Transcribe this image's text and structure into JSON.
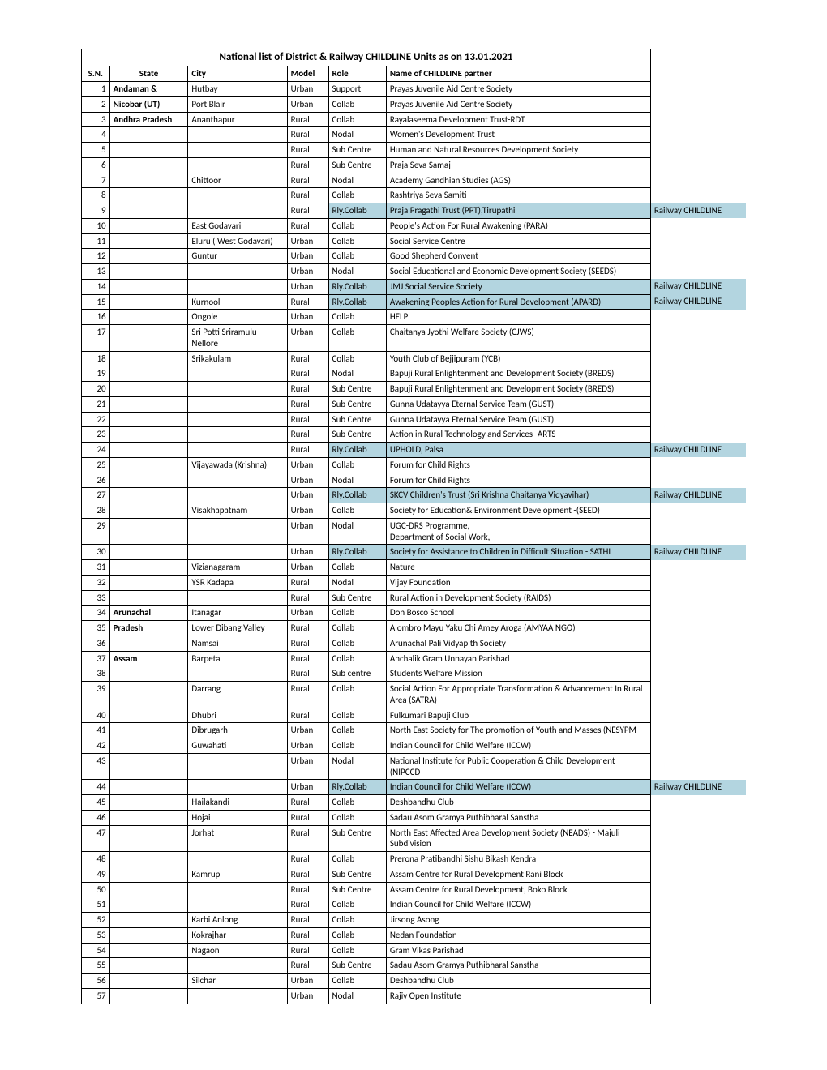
{
  "title": "National list of District & Railway CHILDLINE Units as on 13.01.2021",
  "headers": {
    "sn": "S.N.",
    "state": "State",
    "city": "City",
    "model": "Model",
    "role": "Role",
    "partner": "Name of CHILDLINE partner"
  },
  "tag_color": "#b3d5e0",
  "rows": [
    {
      "sn": 1,
      "state": "Andaman &",
      "city": "Hutbay",
      "model": "Urban",
      "role": "Support",
      "partner": "Prayas Juvenile Aid Centre Society"
    },
    {
      "sn": 2,
      "state": "Nicobar (UT)",
      "city": "Port Blair",
      "model": "Urban",
      "role": "Collab",
      "partner": "Prayas Juvenile Aid Centre Society"
    },
    {
      "sn": 3,
      "state": "Andhra Pradesh",
      "city": "Ananthapur",
      "model": "Rural",
      "role": "Collab",
      "partner": "Rayalaseema Development Trust-RDT"
    },
    {
      "sn": 4,
      "state": "",
      "city": "",
      "model": "Rural",
      "role": "Nodal",
      "partner": "Women's Development Trust"
    },
    {
      "sn": 5,
      "state": "",
      "city": "",
      "model": "Rural",
      "role": "Sub Centre",
      "partner": "Human and Natural Resources Development Society"
    },
    {
      "sn": 6,
      "state": "",
      "city": "",
      "model": "Rural",
      "role": "Sub Centre",
      "partner": "Praja Seva Samaj"
    },
    {
      "sn": 7,
      "state": "",
      "city": "Chittoor",
      "model": "Rural",
      "role": "Nodal",
      "partner": "Academy Gandhian Studies (AGS)"
    },
    {
      "sn": 8,
      "state": "",
      "city": "",
      "model": "Rural",
      "role": "Collab",
      "partner": "Rashtriya Seva Samiti"
    },
    {
      "sn": 9,
      "state": "",
      "city": "",
      "model": "Rural",
      "role": "Rly.Collab",
      "partner": "Praja Pragathi Trust (PPT),Tirupathi",
      "hl": true,
      "tag": "Railway CHILDLINE"
    },
    {
      "sn": 10,
      "state": "",
      "city": "East Godavari",
      "model": "Rural",
      "role": "Collab",
      "partner": "People's Action For Rural Awakening (PARA)"
    },
    {
      "sn": 11,
      "state": "",
      "city": "Eluru ( West Godavari)",
      "model": "Urban",
      "role": "Collab",
      "partner": "Social Service Centre"
    },
    {
      "sn": 12,
      "state": "",
      "city": "Guntur",
      "model": "Urban",
      "role": "Collab",
      "partner": "Good Shepherd Convent"
    },
    {
      "sn": 13,
      "state": "",
      "city": "",
      "model": "Urban",
      "role": "Nodal",
      "partner": "Social Educational and Economic Development Society (SEEDS)"
    },
    {
      "sn": 14,
      "state": "",
      "city": "",
      "model": "Urban",
      "role": "Rly.Collab",
      "partner": "JMJ Social Service Society",
      "hl": true,
      "tag": "Railway CHILDLINE"
    },
    {
      "sn": 15,
      "state": "",
      "city": "Kurnool",
      "model": "Rural",
      "role": "Rly.Collab",
      "partner": "Awakening Peoples Action for Rural Development (APARD)",
      "hl": true,
      "tag": "Railway CHILDLINE"
    },
    {
      "sn": 16,
      "state": "",
      "city": "Ongole",
      "model": "Urban",
      "role": "Collab",
      "partner": "HELP"
    },
    {
      "sn": 17,
      "state": "",
      "city": "Sri Potti Sriramulu Nellore",
      "model": "Urban",
      "role": "Collab",
      "partner": "Chaitanya Jyothi Welfare Society (CJWS)"
    },
    {
      "sn": 18,
      "state": "",
      "city": "Srikakulam",
      "model": "Rural",
      "role": "Collab",
      "partner": "Youth Club of Bejjipuram (YCB)"
    },
    {
      "sn": 19,
      "state": "",
      "city": "",
      "model": "Rural",
      "role": "Nodal",
      "partner": "Bapuji Rural Enlightenment and Development Society (BREDS)"
    },
    {
      "sn": 20,
      "state": "",
      "city": "",
      "model": "Rural",
      "role": "Sub Centre",
      "partner": "Bapuji Rural Enlightenment and Development Society (BREDS)"
    },
    {
      "sn": 21,
      "state": "",
      "city": "",
      "model": "Rural",
      "role": "Sub Centre",
      "partner": "Gunna Udatayya Eternal Service Team  (GUST)"
    },
    {
      "sn": 22,
      "state": "",
      "city": "",
      "model": "Rural",
      "role": "Sub Centre",
      "partner": "Gunna Udatayya Eternal Service Team  (GUST)"
    },
    {
      "sn": 23,
      "state": "",
      "city": "",
      "model": "Rural",
      "role": "Sub Centre",
      "partner": "Action in Rural Technology and Services -ARTS"
    },
    {
      "sn": 24,
      "state": "",
      "city": "",
      "model": "Rural",
      "role": "Rly.Collab",
      "partner": "UPHOLD, Palsa",
      "hl": true,
      "tag": "Railway CHILDLINE"
    },
    {
      "sn": 25,
      "state": "",
      "city": "Vijayawada (Krishna)",
      "model": "Urban",
      "role": "Collab",
      "partner": "Forum for Child Rights",
      "rowspan_city": 2
    },
    {
      "sn": 26,
      "state": "",
      "city": "",
      "model": "Urban",
      "role": "Nodal",
      "partner": "Forum for Child Rights",
      "skip_city": true
    },
    {
      "sn": 27,
      "state": "",
      "city": "",
      "model": "Urban",
      "role": "Rly.Collab",
      "partner": "SKCV Children's Trust (Sri Krishna Chaitanya Vidyavihar)",
      "hl": true,
      "tag": "Railway CHILDLINE"
    },
    {
      "sn": 28,
      "state": "",
      "city": "Visakhapatnam",
      "model": "Urban",
      "role": "Collab",
      "partner": "Society for Education& Environment  Development -(SEED)"
    },
    {
      "sn": 29,
      "state": "",
      "city": "",
      "model": "Urban",
      "role": "Nodal",
      "partner": "UGC-DRS Programme,\nDepartment of Social Work,"
    },
    {
      "sn": 30,
      "state": "",
      "city": "",
      "model": "Urban",
      "role": "Rly.Collab",
      "partner": "Society for Assistance to Children in Difficult Situation - SATHI",
      "hl": true,
      "tag": "Railway CHILDLINE"
    },
    {
      "sn": 31,
      "state": "",
      "city": "Vizianagaram",
      "model": "Urban",
      "role": "Collab",
      "partner": "Nature"
    },
    {
      "sn": 32,
      "state": "",
      "city": "YSR Kadapa",
      "model": "Rural",
      "role": "Nodal",
      "partner": "Vijay Foundation"
    },
    {
      "sn": 33,
      "state": "",
      "city": "",
      "model": "Rural",
      "role": "Sub Centre",
      "partner": "Rural Action in Development Society (RAIDS)"
    },
    {
      "sn": 34,
      "state": "Arunachal",
      "city": "Itanagar",
      "model": "Urban",
      "role": "Collab",
      "partner": "Don Bosco School"
    },
    {
      "sn": 35,
      "state": "Pradesh",
      "city": "Lower Dibang Valley",
      "model": "Rural",
      "role": "Collab",
      "partner": "Alombro Mayu Yaku Chi Amey Aroga (AMYAA NGO)"
    },
    {
      "sn": 36,
      "state": "",
      "city": "Namsai",
      "model": "Rural",
      "role": "Collab",
      "partner": "Arunachal Pali Vidyapith Society"
    },
    {
      "sn": 37,
      "state": "Assam",
      "city": "Barpeta",
      "model": "Rural",
      "role": "Collab",
      "partner": "Anchalik Gram Unnayan Parishad"
    },
    {
      "sn": 38,
      "state": "",
      "city": "",
      "model": "Rural",
      "role": "Sub centre",
      "partner": "Students Welfare Mission"
    },
    {
      "sn": 39,
      "state": "",
      "city": "Darrang",
      "model": "Rural",
      "role": "Collab",
      "partner": "Social Action For Appropriate Transformation & Advancement In Rural Area (SATRA)"
    },
    {
      "sn": 40,
      "state": "",
      "city": "Dhubri",
      "model": "Rural",
      "role": "Collab",
      "partner": "Fulkumari Bapuji Club"
    },
    {
      "sn": 41,
      "state": "",
      "city": "Dibrugarh",
      "model": "Urban",
      "role": "Collab",
      "partner": "North East Society for The promotion of Youth and Masses (NESYPM"
    },
    {
      "sn": 42,
      "state": "",
      "city": "Guwahati",
      "model": "Urban",
      "role": "Collab",
      "partner": "Indian Council for Child Welfare (ICCW)"
    },
    {
      "sn": 43,
      "state": "",
      "city": "",
      "model": "Urban",
      "role": "Nodal",
      "partner": "National Institute for Public Cooperation & Child Development (NIPCCD"
    },
    {
      "sn": 44,
      "state": "",
      "city": "",
      "model": "Urban",
      "role": "Rly.Collab",
      "partner": "Indian Council for Child Welfare (ICCW)",
      "hl": true,
      "tag": "Railway CHILDLINE"
    },
    {
      "sn": 45,
      "state": "",
      "city": "Hailakandi",
      "model": "Rural",
      "role": "Collab",
      "partner": "Deshbandhu Club"
    },
    {
      "sn": 46,
      "state": "",
      "city": "Hojai",
      "model": "Rural",
      "role": "Collab",
      "partner": "Sadau Asom Gramya Puthibharal Sanstha"
    },
    {
      "sn": 47,
      "state": "",
      "city": "Jorhat",
      "model": "Rural",
      "role": "Sub Centre",
      "partner": "North East Affected Area Development Society (NEADS) - Majuli Subdivision"
    },
    {
      "sn": 48,
      "state": "",
      "city": "",
      "model": "Rural",
      "role": "Collab",
      "partner": "Prerona Pratibandhi Sishu Bikash Kendra"
    },
    {
      "sn": 49,
      "state": "",
      "city": "Kamrup",
      "model": "Rural",
      "role": "Sub Centre",
      "partner": "Assam Centre for Rural Development Rani Block"
    },
    {
      "sn": 50,
      "state": "",
      "city": "",
      "model": "Rural",
      "role": "Sub Centre",
      "partner": "Assam Centre for Rural Development, Boko Block"
    },
    {
      "sn": 51,
      "state": "",
      "city": "",
      "model": "Rural",
      "role": "Collab",
      "partner": "Indian Council for Child Welfare (ICCW)"
    },
    {
      "sn": 52,
      "state": "",
      "city": "Karbi Anlong",
      "model": "Rural",
      "role": "Collab",
      "partner": "Jirsong Asong"
    },
    {
      "sn": 53,
      "state": "",
      "city": "Kokrajhar",
      "model": "Rural",
      "role": "Collab",
      "partner": "Nedan Foundation"
    },
    {
      "sn": 54,
      "state": "",
      "city": "Nagaon",
      "model": "Rural",
      "role": "Collab",
      "partner": "Gram Vikas Parishad"
    },
    {
      "sn": 55,
      "state": "",
      "city": "",
      "model": "Rural",
      "role": "Sub Centre",
      "partner": "Sadau Asom Gramya Puthibharal Sanstha"
    },
    {
      "sn": 56,
      "state": "",
      "city": "Silchar",
      "model": "Urban",
      "role": "Collab",
      "partner": "Deshbandhu Club"
    },
    {
      "sn": 57,
      "state": "",
      "city": "",
      "model": "Urban",
      "role": "Nodal",
      "partner": "Rajiv Open Institute"
    }
  ]
}
